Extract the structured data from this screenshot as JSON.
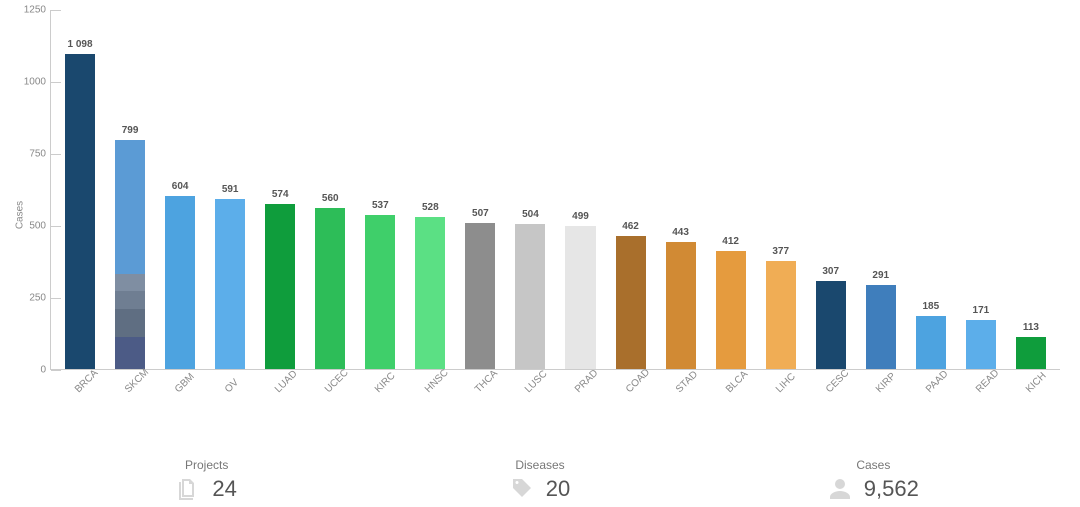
{
  "chart": {
    "type": "bar",
    "ylabel": "Cases",
    "ylim": [
      0,
      1250
    ],
    "ytick_step": 250,
    "axis_color": "#cccccc",
    "label_color": "#888888",
    "value_label_color": "#555555",
    "value_label_fontsize": 10,
    "tick_fontsize": 10,
    "background_color": "#ffffff",
    "bars": [
      {
        "category": "BRCA",
        "value": 1098,
        "display_value": "1 098",
        "color": "#1a486e",
        "segments": null
      },
      {
        "category": "SKCM",
        "value": 799,
        "display_value": "799",
        "color": "#5b9bd5",
        "segments": [
          {
            "value": 110,
            "color": "#4c5b86"
          },
          {
            "value": 100,
            "color": "#5f6e82"
          },
          {
            "value": 60,
            "color": "#6f7e92"
          },
          {
            "value": 60,
            "color": "#7f8ea2"
          },
          {
            "value": 469,
            "color": "#5b9bd5"
          }
        ]
      },
      {
        "category": "GBM",
        "value": 604,
        "display_value": "604",
        "color": "#4da3e0",
        "segments": null
      },
      {
        "category": "OV",
        "value": 591,
        "display_value": "591",
        "color": "#5caeea",
        "segments": null
      },
      {
        "category": "LUAD",
        "value": 574,
        "display_value": "574",
        "color": "#0f9d3c",
        "segments": null
      },
      {
        "category": "UCEC",
        "value": 560,
        "display_value": "560",
        "color": "#2dbd58",
        "segments": null
      },
      {
        "category": "KIRC",
        "value": 537,
        "display_value": "537",
        "color": "#3fcf6a",
        "segments": null
      },
      {
        "category": "HNSC",
        "value": 528,
        "display_value": "528",
        "color": "#5be084",
        "segments": null
      },
      {
        "category": "THCA",
        "value": 507,
        "display_value": "507",
        "color": "#8d8d8d",
        "segments": null
      },
      {
        "category": "LUSC",
        "value": 504,
        "display_value": "504",
        "color": "#c6c6c6",
        "segments": null
      },
      {
        "category": "PRAD",
        "value": 499,
        "display_value": "499",
        "color": "#e6e6e6",
        "segments": null
      },
      {
        "category": "COAD",
        "value": 462,
        "display_value": "462",
        "color": "#a96f2c",
        "segments": null
      },
      {
        "category": "STAD",
        "value": 443,
        "display_value": "443",
        "color": "#d18a34",
        "segments": null
      },
      {
        "category": "BLCA",
        "value": 412,
        "display_value": "412",
        "color": "#e59b3e",
        "segments": null
      },
      {
        "category": "LIHC",
        "value": 377,
        "display_value": "377",
        "color": "#f0ad55",
        "segments": null
      },
      {
        "category": "CESC",
        "value": 307,
        "display_value": "307",
        "color": "#1a486e",
        "segments": null
      },
      {
        "category": "KIRP",
        "value": 291,
        "display_value": "291",
        "color": "#3f7ebc",
        "segments": null
      },
      {
        "category": "PAAD",
        "value": 185,
        "display_value": "185",
        "color": "#4da3e0",
        "segments": null
      },
      {
        "category": "READ",
        "value": 171,
        "display_value": "171",
        "color": "#5caeea",
        "segments": null
      },
      {
        "category": "KICH",
        "value": 113,
        "display_value": "113",
        "color": "#0f9d3c",
        "segments": null
      }
    ]
  },
  "stats": {
    "projects": {
      "label": "Projects",
      "value": "24"
    },
    "diseases": {
      "label": "Diseases",
      "value": "20"
    },
    "cases": {
      "label": "Cases",
      "value": "9,562"
    }
  }
}
